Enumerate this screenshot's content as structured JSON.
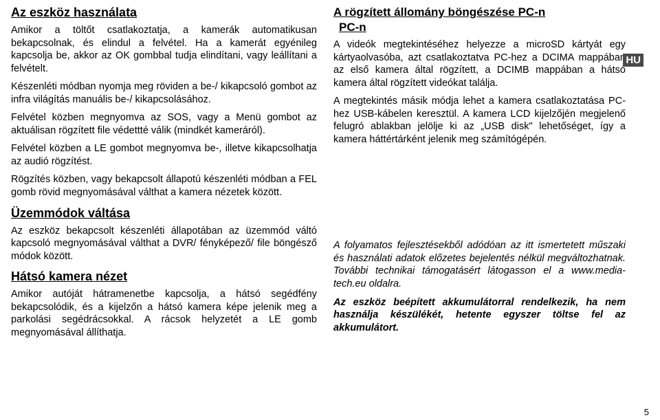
{
  "left": {
    "h1": "Az eszköz használata",
    "p1": "Amikor a töltőt csatlakoztatja, a kamerák automatikusan bekapcsolnak, és elindul a felvétel. Ha a kamerát egyénileg kapcsolja be, akkor az OK gombbal tudja elindítani, vagy leállítani a felvételt.",
    "p2": "Készenléti módban nyomja meg röviden a be-/ kikapcsoló gombot az infra világítás manuális be-/ kikapcsolásához.",
    "p3": "Felvétel közben megnyomva az SOS, vagy a Menü gombot az aktuálisan rögzített file védettté válik (mindkét kameráról).",
    "p4": "Felvétel közben a LE gombot megnyomva be-, illetve kikapcsolhatja az audió rögzítést.",
    "p5": "Rögzítés közben, vagy bekapcsolt állapotú készenléti módban a FEL gomb rövid megnyomásával válthat a kamera nézetek között.",
    "h2": "Üzemmódok váltása",
    "p6": "Az eszköz bekapcsolt készenléti állapotában az üzemmód váltó kapcsoló megnyomásával válthat a DVR/ fényképező/ file böngésző módok között.",
    "h3": "Hátsó kamera nézet",
    "p7": "Amikor autóját hátramenetbe kapcsolja, a hátsó segédfény bekapcsolódik, és a kijelzőn a hátsó kamera képe jelenik meg a parkolási segédrácsokkal. A rácsok helyzetét a LE gomb megnyomásával állíthatja."
  },
  "right": {
    "h1": "A rögzített állomány böngészése PC-n",
    "h1b": "PC-n",
    "badge": "HU",
    "p1": "A videók megtekintéséhez helyezze a microSD kártyát egy kártyaolvasóba, azt csatlakoztatva PC-hez a DCIMA mappában az első kamera által rögzített, a DCIMB mappában a hátsó kamera által rögzített videókat találja.",
    "p2": "A megtekintés másik módja lehet a kamera csatlakoztatása PC-hez USB-kábelen keresztül. A kamera LCD kijelzőjén megjelenő felugró ablakban jelölje ki az „USB disk\" lehetőséget, így a kamera háttértárként jelenik meg számítógépén.",
    "p3": "A folyamatos fejlesztésekből adódóan az itt ismertetett műszaki és használati adatok előzetes bejelentés nélkül megváltozhatnak. További technikai támogatásért látogasson el a www.media-tech.eu oldalra.",
    "p4": "Az eszköz beépített akkumulátorral rendelkezik, ha nem használja készülékét, hetente egyszer töltse fel az akkumulátort.",
    "page": "5"
  },
  "colors": {
    "text": "#000000",
    "bg": "#ffffff",
    "badge_bg": "#4a4a4a",
    "badge_text": "#ffffff"
  },
  "fonts": {
    "body_size": 14.5,
    "heading_size": 18
  }
}
